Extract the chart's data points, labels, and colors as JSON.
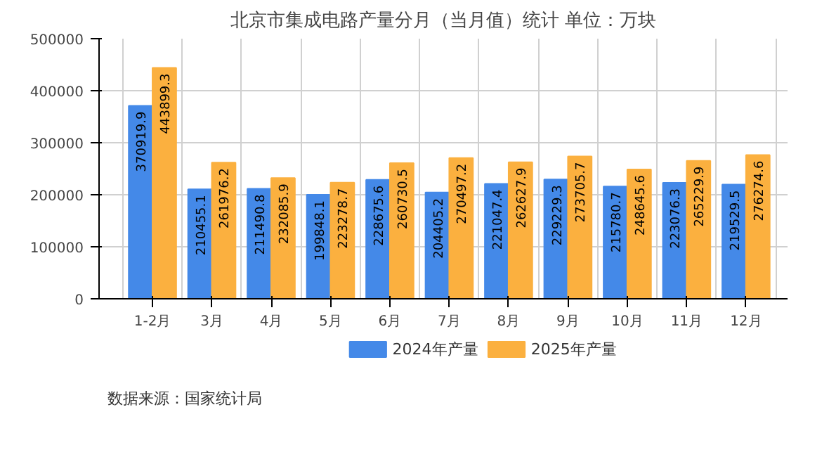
{
  "chart_data": {
    "type": "bar",
    "title": "北京市集成电路产量分月（当月值）统计 单位：万块",
    "categories": [
      "1-2月",
      "3月",
      "4月",
      "5月",
      "6月",
      "7月",
      "8月",
      "9月",
      "10月",
      "11月",
      "12月"
    ],
    "series": [
      {
        "name": "2024年产量",
        "color": "#4489e8",
        "values": [
          370919.9,
          210455.1,
          211490.8,
          199848.1,
          228675.6,
          204405.2,
          221047.4,
          229229.3,
          215780.7,
          223076.3,
          219529.5
        ]
      },
      {
        "name": "2025年产量",
        "color": "#fbb03f",
        "values": [
          443899.3,
          261976.2,
          232085.9,
          223278.7,
          260730.5,
          270497.2,
          262627.9,
          273705.7,
          248645.6,
          265229.9,
          276274.6
        ]
      }
    ],
    "ylim": [
      0,
      500000
    ],
    "yticks": [
      0,
      100000,
      200000,
      300000,
      400000,
      500000
    ],
    "grid": true,
    "legend": "bottom",
    "data_labels": true,
    "annotations": [
      "数据来源：国家统计局"
    ]
  }
}
